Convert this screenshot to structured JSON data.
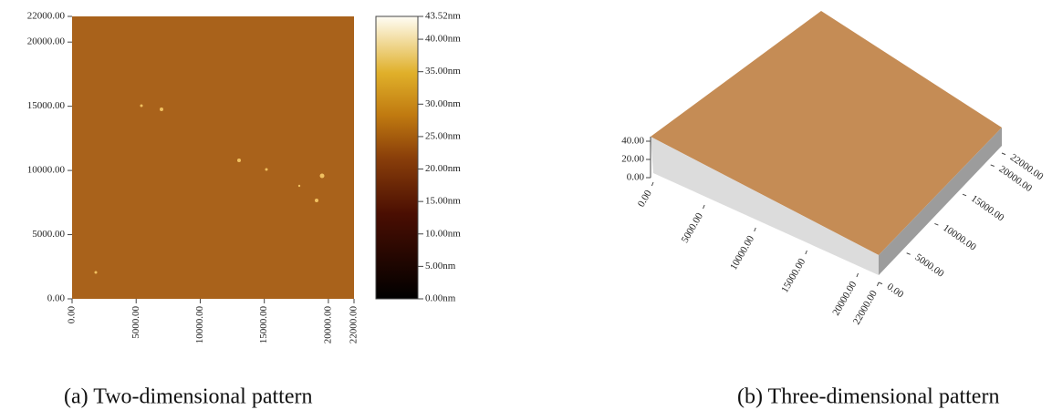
{
  "panel_a": {
    "caption": "(a) Two-dimensional pattern",
    "xticks": [
      {
        "value": 0,
        "label": "0.00"
      },
      {
        "value": 5000,
        "label": "5000.00"
      },
      {
        "value": 10000,
        "label": "10000.00"
      },
      {
        "value": 15000,
        "label": "15000.00"
      },
      {
        "value": 20000,
        "label": "20000.00"
      },
      {
        "value": 22000,
        "label": "22000.00"
      }
    ],
    "yticks": [
      {
        "value": 0,
        "label": "0.00"
      },
      {
        "value": 5000,
        "label": "5000.00"
      },
      {
        "value": 10000,
        "label": "10000.00"
      },
      {
        "value": 15000,
        "label": "15000.00"
      },
      {
        "value": 20000,
        "label": "20000.00"
      },
      {
        "value": 22000,
        "label": "22000.00"
      }
    ],
    "colorbar": [
      {
        "value": 0,
        "label": "0.00nm"
      },
      {
        "value": 5,
        "label": "5.00nm"
      },
      {
        "value": 10,
        "label": "10.00nm"
      },
      {
        "value": 15,
        "label": "15.00nm"
      },
      {
        "value": 20,
        "label": "20.00nm"
      },
      {
        "value": 25,
        "label": "25.00nm"
      },
      {
        "value": 30,
        "label": "30.00nm"
      },
      {
        "value": 35,
        "label": "35.00nm"
      },
      {
        "value": 40,
        "label": "40.00nm"
      },
      {
        "value": 43.52,
        "label": "43.52nm"
      }
    ]
  },
  "panel_b": {
    "caption": "(b) Three-dimensional pattern",
    "zticks": [
      {
        "value": 0,
        "label": "0.00"
      },
      {
        "value": 20,
        "label": "20.00"
      },
      {
        "value": 40,
        "label": "40.00"
      }
    ],
    "xticks": [
      {
        "value": 0,
        "label": "0.00"
      },
      {
        "value": 5000,
        "label": "5000.00"
      },
      {
        "value": 10000,
        "label": "10000.00"
      },
      {
        "value": 15000,
        "label": "15000.00"
      },
      {
        "value": 20000,
        "label": "20000.00"
      },
      {
        "value": 22000,
        "label": "22000.00"
      }
    ],
    "yticks": [
      {
        "value": 0,
        "label": "0.00"
      },
      {
        "value": 5000,
        "label": "5000.00"
      },
      {
        "value": 10000,
        "label": "10000.00"
      },
      {
        "value": 15000,
        "label": "15000.00"
      },
      {
        "value": 20000,
        "label": "20000.00"
      },
      {
        "value": 22000,
        "label": "22000.00"
      }
    ]
  }
}
